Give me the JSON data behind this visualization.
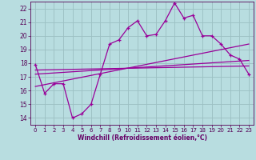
{
  "bg_color": "#b8dde0",
  "grid_color": "#9bbfc2",
  "line_color": "#990099",
  "xlabel": "Windchill (Refroidissement éolien,°C)",
  "xlabel_color": "#660066",
  "tick_color": "#550055",
  "ylim": [
    13.5,
    22.5
  ],
  "xlim": [
    -0.5,
    23.5
  ],
  "yticks": [
    14,
    15,
    16,
    17,
    18,
    19,
    20,
    21,
    22
  ],
  "xticks": [
    0,
    1,
    2,
    3,
    4,
    5,
    6,
    7,
    8,
    9,
    10,
    11,
    12,
    13,
    14,
    15,
    16,
    17,
    18,
    19,
    20,
    21,
    22,
    23
  ],
  "main_series_x": [
    0,
    1,
    2,
    3,
    4,
    5,
    6,
    7,
    8,
    9,
    10,
    11,
    12,
    13,
    14,
    15,
    16,
    17,
    18,
    19,
    20,
    21,
    22,
    23
  ],
  "main_series_y": [
    17.9,
    15.8,
    16.5,
    16.5,
    14.0,
    14.3,
    15.0,
    17.2,
    19.4,
    19.7,
    20.6,
    21.1,
    20.0,
    20.1,
    21.1,
    22.4,
    21.3,
    21.5,
    20.0,
    20.0,
    19.4,
    18.6,
    18.3,
    17.2
  ],
  "trend1_x": [
    0,
    23
  ],
  "trend1_y": [
    17.5,
    17.8
  ],
  "trend2_x": [
    0,
    23
  ],
  "trend2_y": [
    16.3,
    19.4
  ],
  "trend3_x": [
    0,
    23
  ],
  "trend3_y": [
    17.2,
    18.2
  ],
  "figsize": [
    3.2,
    2.0
  ],
  "dpi": 100
}
